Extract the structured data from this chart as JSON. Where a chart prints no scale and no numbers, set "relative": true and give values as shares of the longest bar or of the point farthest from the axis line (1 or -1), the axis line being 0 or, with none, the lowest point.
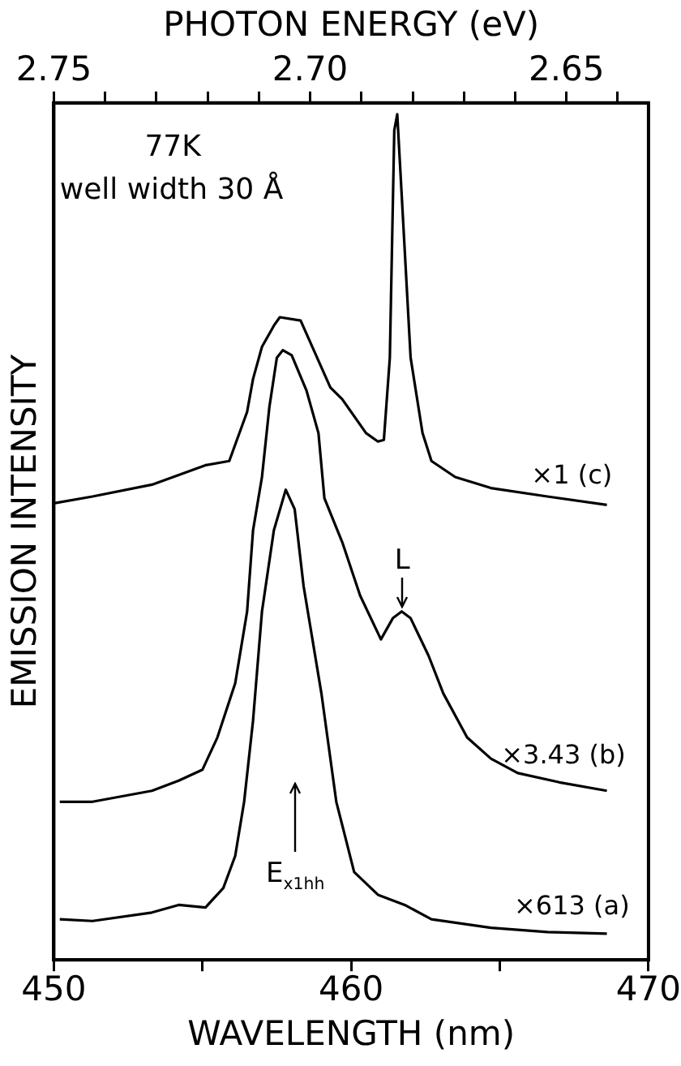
{
  "chart_data": {
    "type": "line",
    "xlabel": "WAVELENGTH (nm)",
    "ylabel": "EMISSION INTENSITY",
    "x2label": "PHOTON ENERGY (eV)",
    "relative": true,
    "legend": false,
    "marker": "none",
    "line_style": "solid",
    "grid": false,
    "xlim": [
      450,
      470
    ],
    "xticks": [
      450,
      {
        "value": 455,
        "label": null
      },
      460,
      {
        "value": 465,
        "label": null
      },
      470
    ],
    "x2lim": [
      2.75,
      2.634
    ],
    "x2ticks": [
      2.75,
      {
        "value": 2.74,
        "label": null
      },
      {
        "value": 2.73,
        "label": null
      },
      {
        "value": 2.72,
        "label": null
      },
      {
        "value": 2.71,
        "label": null
      },
      {
        "value": 2.7,
        "label": "2.70"
      },
      {
        "value": 2.69,
        "label": null
      },
      {
        "value": 2.68,
        "label": null
      },
      {
        "value": 2.67,
        "label": null
      },
      {
        "value": 2.66,
        "label": null
      },
      2.65,
      {
        "value": 2.64,
        "label": null
      }
    ],
    "series": [
      {
        "color": "#000000",
        "x": [
          450.0,
          451.3,
          453.3,
          455.1,
          455.9,
          456.5,
          456.7,
          457.0,
          457.4,
          457.6,
          458.3,
          459.3,
          459.7,
          460.5,
          460.9,
          461.1,
          461.3,
          461.45,
          461.55,
          461.7,
          462.0,
          462.4,
          462.7,
          463.5,
          464.7,
          466.6,
          468.6
        ],
        "values": [
          0.54,
          0.548,
          0.562,
          0.585,
          0.59,
          0.648,
          0.687,
          0.725,
          0.75,
          0.76,
          0.756,
          0.677,
          0.663,
          0.623,
          0.613,
          0.615,
          0.712,
          0.981,
          1.0,
          0.904,
          0.712,
          0.623,
          0.59,
          0.571,
          0.558,
          0.548,
          0.538
        ]
      },
      {
        "color": "#000000",
        "x": [
          450.2,
          451.3,
          453.3,
          454.2,
          455.0,
          455.5,
          456.1,
          456.5,
          456.7,
          457.0,
          457.25,
          457.5,
          457.7,
          458.0,
          458.5,
          458.9,
          459.1,
          459.7,
          460.3,
          461.0,
          461.4,
          461.7,
          462.0,
          462.6,
          463.1,
          463.9,
          464.7,
          465.6,
          467.0,
          468.6
        ],
        "values": [
          0.187,
          0.187,
          0.2,
          0.212,
          0.225,
          0.263,
          0.327,
          0.412,
          0.508,
          0.571,
          0.654,
          0.712,
          0.721,
          0.715,
          0.673,
          0.623,
          0.546,
          0.494,
          0.431,
          0.379,
          0.404,
          0.412,
          0.404,
          0.36,
          0.315,
          0.263,
          0.238,
          0.221,
          0.21,
          0.2
        ]
      },
      {
        "color": "#000000",
        "x": [
          450.2,
          451.3,
          453.3,
          454.2,
          455.1,
          455.7,
          456.1,
          456.4,
          456.7,
          457.0,
          457.4,
          457.8,
          458.1,
          458.4,
          459.0,
          459.5,
          460.1,
          460.9,
          461.8,
          462.7,
          464.7,
          466.6,
          468.6
        ],
        "values": [
          0.048,
          0.046,
          0.056,
          0.065,
          0.062,
          0.085,
          0.123,
          0.187,
          0.283,
          0.412,
          0.508,
          0.556,
          0.533,
          0.442,
          0.315,
          0.187,
          0.104,
          0.077,
          0.065,
          0.048,
          0.038,
          0.033,
          0.031
        ]
      }
    ],
    "annotations": [
      "77K",
      "well width 30 Å",
      "×1 (c)",
      "×3.43 (b)",
      "×613 (a)",
      "L",
      "E$_{x1hh}$"
    ]
  }
}
